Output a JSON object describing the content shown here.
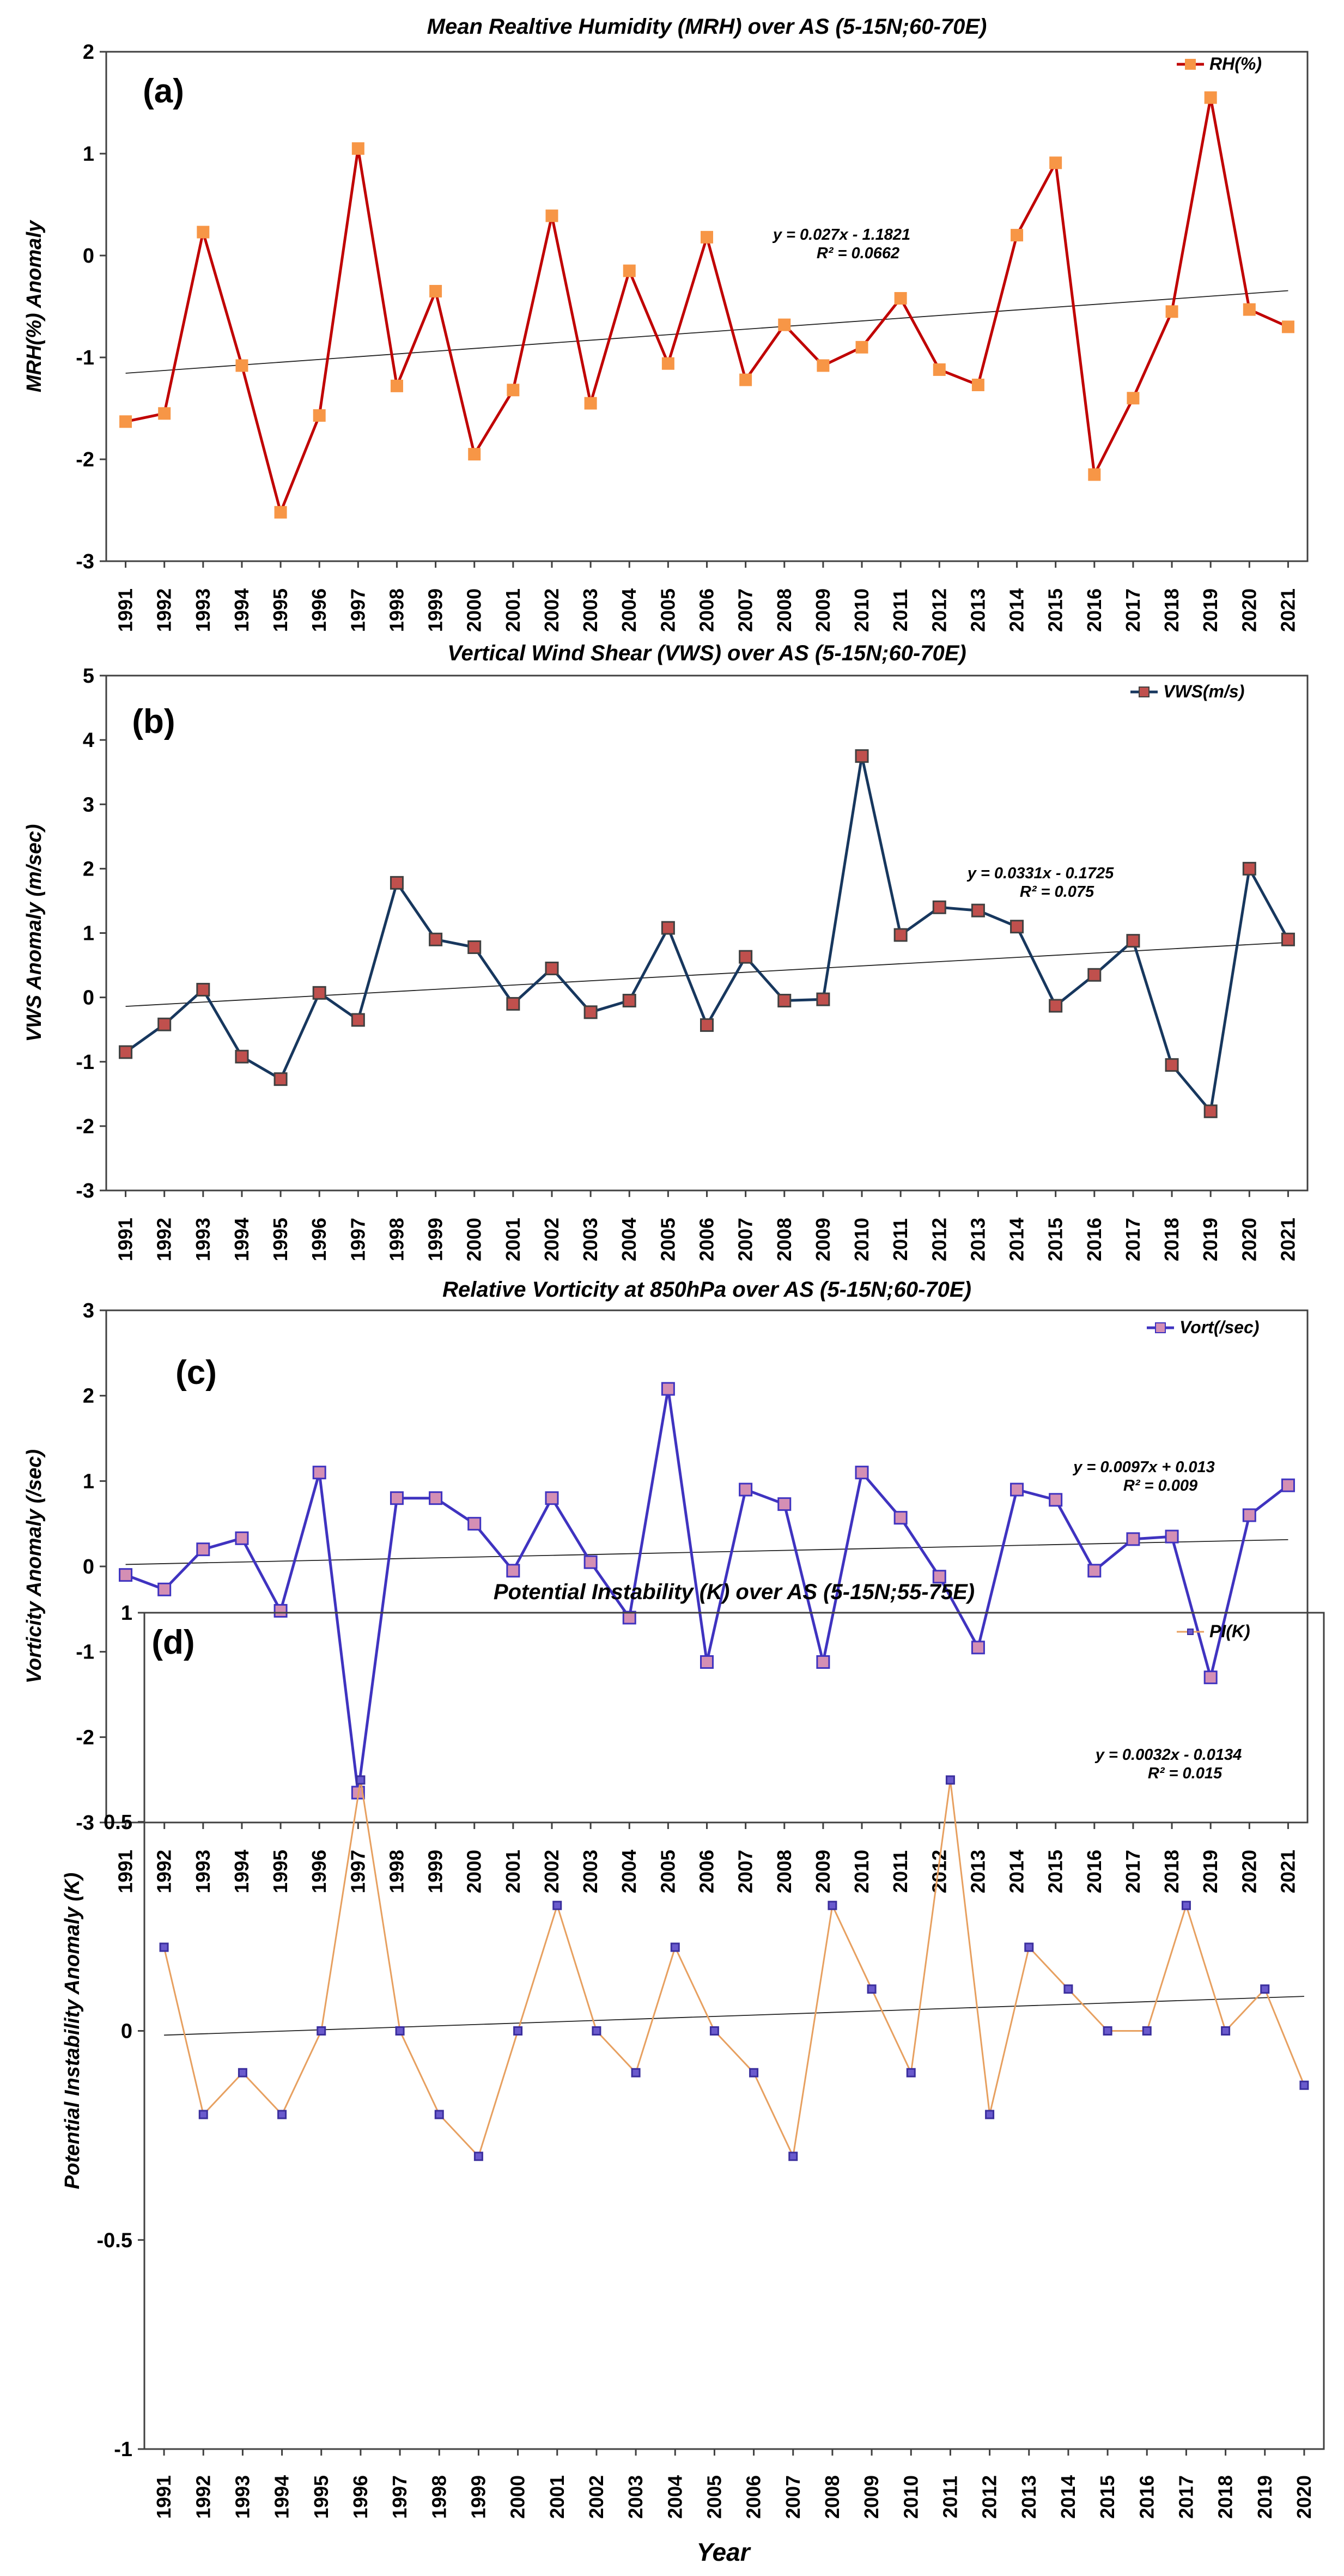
{
  "chart_data": [
    {
      "type": "line",
      "panel_label": "(a)",
      "title": "Mean Realtive Humidity (MRH) over AS (5-15N;60-70E)",
      "ylabel": "MRH(%) Anomaly",
      "xlabel": "",
      "ylim": [
        -3,
        2
      ],
      "yticks": [
        -3,
        -2,
        -1,
        0,
        1,
        2
      ],
      "ytick_labels": [
        "-3",
        "-2",
        "-1",
        "0",
        "1",
        "2"
      ],
      "categories": [
        "1991",
        "1992",
        "1993",
        "1994",
        "1995",
        "1996",
        "1997",
        "1998",
        "1999",
        "2000",
        "2001",
        "2002",
        "2003",
        "2004",
        "2005",
        "2006",
        "2007",
        "2008",
        "2009",
        "2010",
        "2011",
        "2012",
        "2013",
        "2014",
        "2015",
        "2016",
        "2017",
        "2018",
        "2019",
        "2020",
        "2021"
      ],
      "series": [
        {
          "name": "RH(%)",
          "color": "#c00000",
          "marker_fill": "#f79646",
          "marker_edge": "#f79646",
          "values": [
            -1.63,
            -1.55,
            0.23,
            -1.08,
            -2.52,
            -1.57,
            1.05,
            -1.28,
            -0.35,
            -1.95,
            -1.32,
            0.39,
            -1.45,
            -0.15,
            -1.06,
            0.18,
            -1.22,
            -0.68,
            -1.08,
            -0.9,
            -0.42,
            -1.12,
            -1.27,
            0.2,
            0.91,
            -2.15,
            -1.4,
            -0.55,
            1.55,
            -0.53,
            -0.7
          ]
        }
      ],
      "trend": {
        "slope": 0.027,
        "intercept": -1.1821,
        "equation": "y = 0.027x - 1.1821",
        "r2": "R² = 0.0662"
      },
      "legend": "top-right",
      "grid": false
    },
    {
      "type": "line",
      "panel_label": "(b)",
      "title": "Vertical Wind Shear (VWS) over AS (5-15N;60-70E)",
      "ylabel": "VWS  Anomaly (m/sec)",
      "xlabel": "",
      "ylim": [
        -3,
        5
      ],
      "yticks": [
        -3,
        -2,
        -1,
        0,
        1,
        2,
        3,
        4,
        5
      ],
      "ytick_labels": [
        "-3",
        "-2",
        "-1",
        "0",
        "1",
        "2",
        "3",
        "4",
        "5"
      ],
      "categories": [
        "1991",
        "1992",
        "1993",
        "1994",
        "1995",
        "1996",
        "1997",
        "1998",
        "1999",
        "2000",
        "2001",
        "2002",
        "2003",
        "2004",
        "2005",
        "2006",
        "2007",
        "2008",
        "2009",
        "2010",
        "2011",
        "2012",
        "2013",
        "2014",
        "2015",
        "2016",
        "2017",
        "2018",
        "2019",
        "2020",
        "2021"
      ],
      "series": [
        {
          "name": "VWS(m/s)",
          "color": "#17375e",
          "marker_fill": "#c0504d",
          "marker_edge": "#404040",
          "values": [
            -0.85,
            -0.42,
            0.12,
            -0.92,
            -1.27,
            0.07,
            -0.35,
            1.78,
            0.9,
            0.78,
            -0.1,
            0.45,
            -0.23,
            -0.05,
            1.08,
            -0.43,
            0.63,
            -0.05,
            -0.03,
            3.75,
            0.97,
            1.4,
            1.35,
            1.1,
            -0.13,
            0.35,
            0.88,
            -1.05,
            -1.77,
            2.0,
            0.9
          ]
        }
      ],
      "trend": {
        "slope": 0.0331,
        "intercept": -0.1725,
        "equation": "y = 0.0331x - 0.1725",
        "r2": "R² = 0.075"
      },
      "legend": "top-right",
      "grid": false
    },
    {
      "type": "line",
      "panel_label": "(c)",
      "title": "Relative Vorticity at 850hPa over AS (5-15N;60-70E)",
      "ylabel": "Vorticity Anomaly (/sec)",
      "xlabel": "",
      "ylim": [
        -3,
        3
      ],
      "yticks": [
        -3,
        -2,
        -1,
        0,
        1,
        2,
        3
      ],
      "ytick_labels": [
        "-3",
        "-2",
        "-1",
        "0",
        "1",
        "2",
        "3"
      ],
      "categories": [
        "1991",
        "1992",
        "1993",
        "1994",
        "1995",
        "1996",
        "1997",
        "1998",
        "1999",
        "2000",
        "2001",
        "2002",
        "2003",
        "2004",
        "2005",
        "2006",
        "2007",
        "2008",
        "2009",
        "2010",
        "2011",
        "2012",
        "2013",
        "2014",
        "2015",
        "2016",
        "2017",
        "2018",
        "2019",
        "2020",
        "2021"
      ],
      "series": [
        {
          "name": "Vort(/sec)",
          "color": "#3f33c0",
          "marker_fill": "#d48fb4",
          "marker_edge": "#3f33c0",
          "values": [
            -0.1,
            -0.27,
            0.2,
            0.33,
            -0.52,
            1.1,
            -2.65,
            0.8,
            0.8,
            0.5,
            -0.05,
            0.8,
            0.05,
            -0.6,
            2.08,
            -1.12,
            0.9,
            0.73,
            -1.12,
            1.1,
            0.57,
            -0.12,
            -0.95,
            0.9,
            0.78,
            -0.05,
            0.32,
            0.35,
            -1.3,
            0.6,
            0.95
          ]
        }
      ],
      "trend": {
        "slope": 0.0097,
        "intercept": 0.013,
        "equation": "y = 0.0097x + 0.013",
        "r2": "R² = 0.009"
      },
      "legend": "top-right",
      "grid": false
    },
    {
      "type": "line",
      "panel_label": "(d)",
      "title": "Potential Instability (K) over AS (5-15N;55-75E)",
      "ylabel": "Potential Instability Anomaly (K)",
      "xlabel": "Year",
      "ylim": [
        -1,
        1
      ],
      "yticks": [
        -1,
        -0.5,
        0,
        0.5,
        1
      ],
      "ytick_labels": [
        "-1",
        "-0.5",
        "0",
        "0.5",
        "1"
      ],
      "categories": [
        "1991",
        "1992",
        "1993",
        "1994",
        "1995",
        "1996",
        "1997",
        "1998",
        "1999",
        "2000",
        "2001",
        "2002",
        "2003",
        "2004",
        "2005",
        "2006",
        "2007",
        "2008",
        "2009",
        "2010",
        "2011",
        "2012",
        "2013",
        "2014",
        "2015",
        "2016",
        "2017",
        "2018",
        "2019",
        "2020"
      ],
      "series": [
        {
          "name": "PI(K)",
          "color": "#e7a060",
          "marker_fill": "#6a5acd",
          "marker_edge": "#3b2f9e",
          "values": [
            0.2,
            -0.2,
            -0.1,
            -0.2,
            0.0,
            0.6,
            0.0,
            -0.2,
            -0.3,
            0.0,
            0.3,
            0.0,
            -0.1,
            0.2,
            0.0,
            -0.1,
            -0.3,
            0.3,
            0.1,
            -0.1,
            0.6,
            -0.2,
            0.2,
            0.1,
            0.0,
            0.0,
            0.3,
            0.0,
            0.1,
            -0.13
          ]
        }
      ],
      "trend": {
        "slope": 0.0032,
        "intercept": -0.0134,
        "equation": "y = 0.0032x - 0.0134",
        "r2": "R² = 0.015"
      },
      "legend": "top-right",
      "grid": false
    }
  ]
}
